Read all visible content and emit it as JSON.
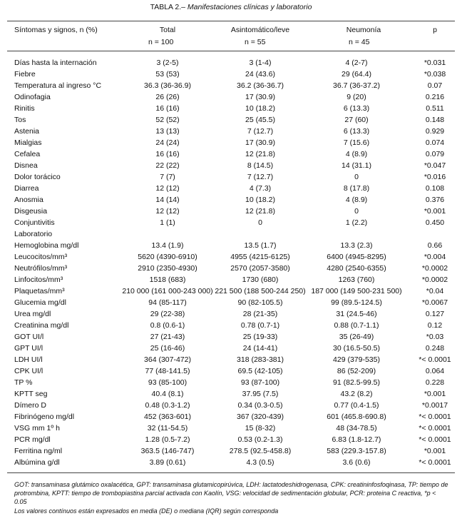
{
  "title_label": "TABLA 2.–",
  "title_text": "Manifestaciones clínicas y laboratorio",
  "header": {
    "col0": "Síntomas y signos, n (%)",
    "col1": "Total",
    "col1_n": "n = 100",
    "col2": "Asintomático/leve",
    "col2_n": "n = 55",
    "col3": "Neumonía",
    "col3_n": "n = 45",
    "col4": "p"
  },
  "table": {
    "symptom_rows": [
      [
        "Días hasta la internación",
        "3 (2-5)",
        "3 (1-4)",
        "4 (2-7)",
        "*0.031"
      ],
      [
        "Fiebre",
        "53 (53)",
        "24 (43.6)",
        "29 (64.4)",
        "*0.038"
      ],
      [
        "Temperatura al ingreso °C",
        "36.3 (36-36.9)",
        "36.2 (36-36.7)",
        "36.7 (36-37.2)",
        "0.07"
      ],
      [
        "Odinofagia",
        "26 (26)",
        "17 (30.9)",
        "9 (20)",
        "0.216"
      ],
      [
        "Rinitis",
        "16 (16)",
        "10 (18.2)",
        "6 (13.3)",
        "0.511"
      ],
      [
        "Tos",
        "52 (52)",
        "25 (45.5)",
        "27 (60)",
        "0.148"
      ],
      [
        "Astenia",
        "13 (13)",
        "7 (12.7)",
        "6 (13.3)",
        "0.929"
      ],
      [
        "Mialgias",
        "24 (24)",
        "17 (30.9)",
        "7 (15.6)",
        "0.074"
      ],
      [
        "Cefalea",
        "16 (16)",
        "12 (21.8)",
        "4 (8.9)",
        "0.079"
      ],
      [
        "Disnea",
        "22 (22)",
        "8 (14.5)",
        "14 (31.1)",
        "*0.047"
      ],
      [
        "Dolor torácico",
        "7 (7)",
        "7 (12.7)",
        "0",
        "*0.016"
      ],
      [
        "Diarrea",
        "12 (12)",
        "4 (7.3)",
        "8 (17.8)",
        "0.108"
      ],
      [
        "Anosmia",
        "14 (14)",
        "10 (18.2)",
        "4 (8.9)",
        "0.376"
      ],
      [
        "Disgeusia",
        "12 (12)",
        "12 (21.8)",
        "0",
        "*0.001"
      ],
      [
        "Conjuntivitis",
        "1 (1)",
        "0",
        "1 (2.2)",
        "0.450"
      ]
    ],
    "section_label": "Laboratorio",
    "lab_rows": [
      [
        "Hemoglobina mg/dl",
        "13.4 (1.9)",
        "13.5 (1.7)",
        "13.3 (2.3)",
        "0.66"
      ],
      [
        "Leucocitos/mm³",
        "5620 (4390-6910)",
        "4955 (4215-6125)",
        "6400 (4945-8295)",
        "*0.004"
      ],
      [
        "Neutrófilos/mm³",
        "2910 (2350-4930)",
        "2570 (2057-3580)",
        "4280 (2540-6355)",
        "*0.0002"
      ],
      [
        "Linfocitos/mm³",
        "1518 (683)",
        "1730 (680)",
        "1263 (760)",
        "*0.0002"
      ],
      [
        "Plaquetas/mm³",
        "210 000 (161 000-243 000)",
        "221 500 (188 500-244 250)",
        "187 000 (149 500-231 500)",
        "*0.04"
      ],
      [
        "Glucemia mg/dl",
        "94 (85-117)",
        "90 (82-105.5)",
        "99 (89.5-124.5)",
        "*0.0067"
      ],
      [
        "Urea mg/dl",
        "29 (22-38)",
        "28 (21-35)",
        "31 (24.5-46)",
        "0.127"
      ],
      [
        "Creatinina mg/dl",
        "0.8 (0.6-1)",
        "0.78 (0.7-1)",
        "0.88 (0.7-1.1)",
        "0.12"
      ],
      [
        "GOT UI/l",
        "27 (21-43)",
        "25 (19-33)",
        "35 (26-49)",
        "*0.03"
      ],
      [
        "GPT UI/l",
        "25 (16-46)",
        "24 (14-41)",
        "30 (16.5-50.5)",
        "0.248"
      ],
      [
        "LDH UI/l",
        "364 (307-472)",
        "318 (283-381)",
        "429 (379-535)",
        "*< 0.0001"
      ],
      [
        "CPK UI/l",
        "77 (48-141.5)",
        "69.5 (42-105)",
        "86 (52-209)",
        "0.064"
      ],
      [
        "TP %",
        "93 (85-100)",
        "93 (87-100)",
        "91 (82.5-99.5)",
        "0.228"
      ],
      [
        "KPTT seg",
        "40.4 (8.1)",
        "37.95 (7.5)",
        "43.2 (8.2)",
        "*0.001"
      ],
      [
        "Dímero D",
        "0.48 (0.3-1.2)",
        "0.34 (0.3-0.5)",
        "0.77 (0.4-1.5)",
        "*0.0017"
      ],
      [
        "Fibrinógeno mg/dl",
        "452 (363-601)",
        "367 (320-439)",
        "601 (465.8-690.8)",
        "*< 0.0001"
      ],
      [
        "VSG mm 1º h",
        "32 (11-54.5)",
        "15 (8-32)",
        "48 (34-78.5)",
        "*< 0.0001"
      ],
      [
        "PCR mg/dl",
        "1.28 (0.5-7.2)",
        "0.53 (0.2-1.3)",
        "6.83 (1.8-12.7)",
        "*< 0.0001"
      ],
      [
        "Ferritina ng/ml",
        "363.5 (146-747)",
        "278.5 (92.5-458.8)",
        "583 (229.3-157.8)",
        "*0.001"
      ],
      [
        "Albúmina g/dl",
        "3.89 (0.61)",
        "4.3 (0.5)",
        "3.6 (0.6)",
        "*< 0.0001"
      ]
    ]
  },
  "footnotes": [
    "GOT: transaminasa glutámico oxalacética, GPT: transaminasa glutamicopirúvica, LDH: lactatodeshidrogenasa, CPK: creatininfosfoqinasa, TP: tiempo de protrombina, KPTT: tiempo de trombopiastina parcial activada con Kaolín, VSG: velocidad de sedimentación globular, PCR: proteina C reactiva, *p < 0.05",
    "Los valores contínuos están expresados en media (DE) o mediana (IQR) según corresponda"
  ]
}
